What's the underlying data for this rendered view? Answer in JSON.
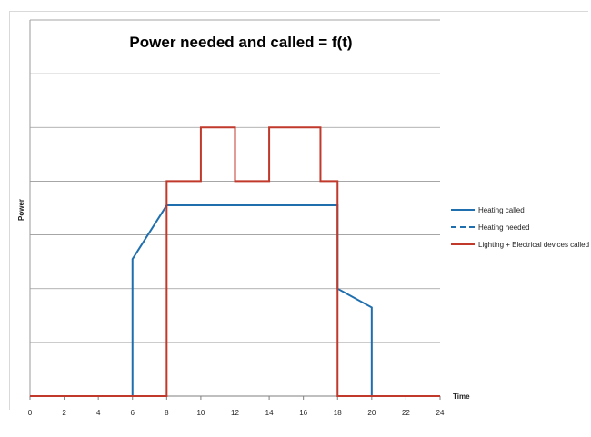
{
  "chart_data": {
    "type": "line",
    "title": "Power needed and called = f(t)",
    "xlabel": "Time",
    "ylabel": "Power",
    "xlim": [
      0,
      24
    ],
    "ylim": [
      0,
      7
    ],
    "x_ticks": [
      "0",
      "2",
      "4",
      "6",
      "8",
      "10",
      "12",
      "14",
      "16",
      "18",
      "20",
      "22",
      "24"
    ],
    "y_gridlines": [
      1,
      2,
      3,
      4,
      5,
      6,
      7
    ],
    "grid": true,
    "legend_position": "right",
    "series": [
      {
        "name": "Heating called",
        "color": "#1f6fae",
        "style": "solid",
        "points": [
          [
            0,
            0
          ],
          [
            6,
            0
          ],
          [
            6,
            2.55
          ],
          [
            8,
            3.55
          ],
          [
            18,
            3.55
          ],
          [
            18,
            2
          ],
          [
            20,
            1.65
          ],
          [
            20,
            0
          ],
          [
            24,
            0
          ]
        ]
      },
      {
        "name": "Heating needed",
        "color": "#1f6fae",
        "style": "dashed",
        "points": [
          [
            8,
            3.55
          ],
          [
            18,
            3.55
          ]
        ]
      },
      {
        "name": "Lighting + Electrical devices called",
        "color": "#c0392b",
        "style": "solid",
        "points": [
          [
            0,
            0
          ],
          [
            8,
            0
          ],
          [
            8,
            4
          ],
          [
            10,
            4
          ],
          [
            10,
            5
          ],
          [
            12,
            5
          ],
          [
            12,
            4
          ],
          [
            14,
            4
          ],
          [
            14,
            5
          ],
          [
            17,
            5
          ],
          [
            17,
            4
          ],
          [
            18,
            4
          ],
          [
            18,
            0
          ],
          [
            24,
            0
          ]
        ]
      }
    ]
  }
}
